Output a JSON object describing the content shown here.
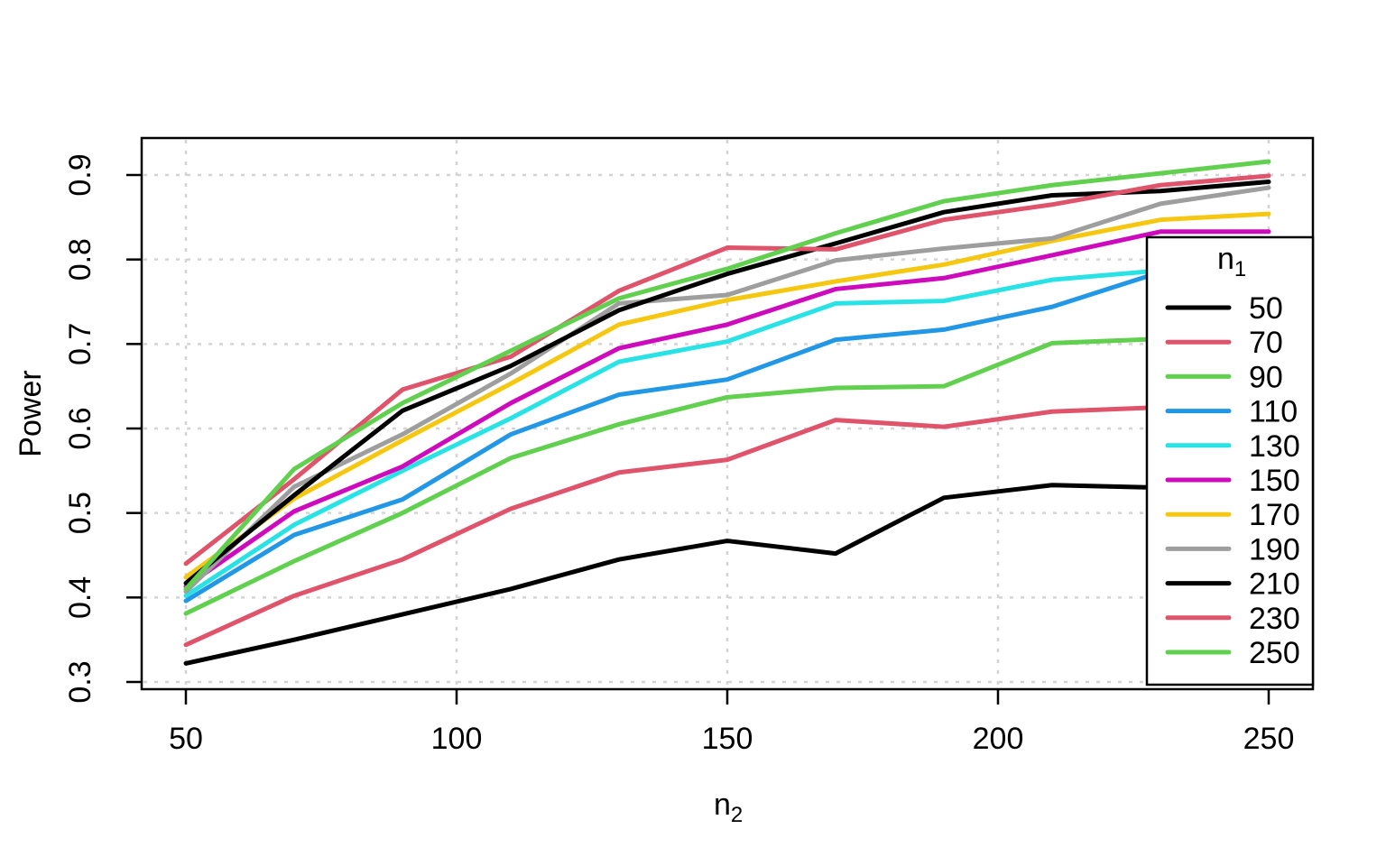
{
  "figure": {
    "background": "#FFFFFF"
  },
  "chart_data": {
    "type": "line",
    "title": "",
    "xlabel": {
      "base": "n",
      "sub": "2"
    },
    "ylabel": "Power",
    "xlim": [
      50,
      250
    ],
    "ylim": [
      0.3,
      0.9
    ],
    "x_ticks": [
      50,
      100,
      150,
      200,
      250
    ],
    "y_ticks": [
      0.3,
      0.4,
      0.5,
      0.6,
      0.7,
      0.8,
      0.9
    ],
    "grid": true,
    "grid_color": "#D4D4D4",
    "axis_color": "#000000",
    "line_width": 5,
    "x": [
      50,
      70,
      90,
      110,
      130,
      150,
      170,
      190,
      210,
      230,
      250
    ],
    "series": [
      {
        "name": "50",
        "color": "#000000",
        "values": [
          0.322,
          0.35,
          0.38,
          0.41,
          0.445,
          0.467,
          0.452,
          0.518,
          0.533,
          0.53,
          0.528
        ]
      },
      {
        "name": "70",
        "color": "#DF536B",
        "values": [
          0.344,
          0.402,
          0.445,
          0.505,
          0.548,
          0.563,
          0.61,
          0.602,
          0.62,
          0.625,
          0.628
        ]
      },
      {
        "name": "90",
        "color": "#61D04F",
        "values": [
          0.381,
          0.443,
          0.5,
          0.565,
          0.605,
          0.637,
          0.648,
          0.65,
          0.701,
          0.706,
          0.708
        ]
      },
      {
        "name": "110",
        "color": "#2297E6",
        "values": [
          0.396,
          0.474,
          0.516,
          0.593,
          0.64,
          0.658,
          0.705,
          0.717,
          0.744,
          0.785,
          0.788
        ]
      },
      {
        "name": "130",
        "color": "#28E2E5",
        "values": [
          0.402,
          0.486,
          0.55,
          0.612,
          0.679,
          0.703,
          0.748,
          0.751,
          0.776,
          0.787,
          0.79
        ]
      },
      {
        "name": "150",
        "color": "#CD0BBC",
        "values": [
          0.413,
          0.502,
          0.555,
          0.63,
          0.695,
          0.723,
          0.765,
          0.778,
          0.805,
          0.833,
          0.833
        ]
      },
      {
        "name": "170",
        "color": "#F5C710",
        "values": [
          0.424,
          0.517,
          0.586,
          0.653,
          0.723,
          0.752,
          0.774,
          0.794,
          0.822,
          0.847,
          0.854
        ]
      },
      {
        "name": "190",
        "color": "#9E9E9E",
        "values": [
          0.407,
          0.531,
          0.593,
          0.665,
          0.748,
          0.758,
          0.799,
          0.813,
          0.825,
          0.866,
          0.885
        ]
      },
      {
        "name": "210",
        "color": "#000000",
        "values": [
          0.417,
          0.521,
          0.621,
          0.674,
          0.74,
          0.783,
          0.819,
          0.856,
          0.876,
          0.881,
          0.892
        ]
      },
      {
        "name": "230",
        "color": "#DF536B",
        "values": [
          0.44,
          0.54,
          0.646,
          0.685,
          0.763,
          0.814,
          0.812,
          0.847,
          0.865,
          0.888,
          0.899
        ]
      },
      {
        "name": "250",
        "color": "#61D04F",
        "values": [
          0.41,
          0.552,
          0.63,
          0.692,
          0.754,
          0.789,
          0.831,
          0.869,
          0.888,
          0.902,
          0.916
        ]
      }
    ],
    "legend": {
      "title": {
        "base": "n",
        "sub": "1"
      },
      "position": "right-overlay",
      "entries": [
        "50",
        "70",
        "90",
        "110",
        "130",
        "150",
        "170",
        "190",
        "210",
        "230",
        "250"
      ]
    }
  }
}
